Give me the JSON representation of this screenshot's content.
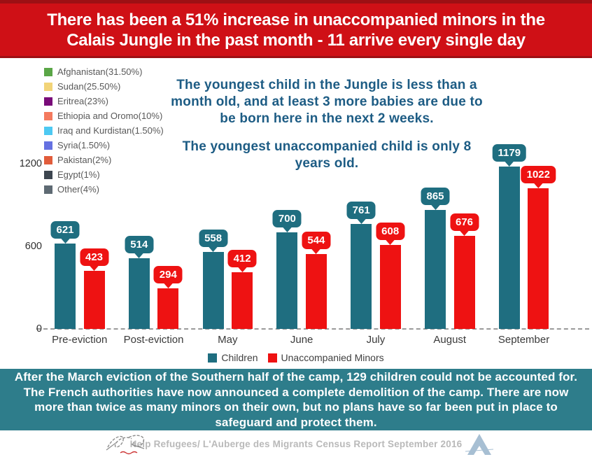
{
  "header": {
    "title_line1": "There has been a 51% increase in unaccompanied minors in the",
    "title_line2": "Calais Jungle in the past month - 11 arrive every single day",
    "background": "#cf1016",
    "stripe_color": "#9d1014",
    "text_color": "#ffffff"
  },
  "nationality_legend": {
    "items": [
      {
        "label": "Afghanistan(31.50%)",
        "color": "#5aa647"
      },
      {
        "label": "Sudan(25.50%)",
        "color": "#f2d478"
      },
      {
        "label": "Eritrea(23%)",
        "color": "#790b79"
      },
      {
        "label": "Ethiopia and Oromo(10%)",
        "color": "#f47a5e"
      },
      {
        "label": "Iraq and Kurdistan(1.50%)",
        "color": "#4dc9f2"
      },
      {
        "label": "Syria(1.50%)",
        "color": "#6571e1"
      },
      {
        "label": "Pakistan(2%)",
        "color": "#e15c3b"
      },
      {
        "label": "Egypt(1%)",
        "color": "#3d4650"
      },
      {
        "label": "Other(4%)",
        "color": "#5e6a73"
      }
    ]
  },
  "callout": {
    "paragraph1": "The youngest child in the Jungle is less than a month old, and at least 3 more babies are due to be born here in the next 2 weeks.",
    "paragraph2": "The youngest unaccompanied child is only 8 years old.",
    "text_color": "#1d5c84"
  },
  "chart_data": {
    "type": "bar",
    "categories": [
      "Pre-eviction",
      "Post-eviction",
      "May",
      "June",
      "July",
      "August",
      "September"
    ],
    "series": [
      {
        "name": "Children",
        "color": "#1f6e80",
        "values": [
          621,
          514,
          558,
          700,
          761,
          865,
          1179
        ]
      },
      {
        "name": "Unaccompanied Minors",
        "color": "#ee1212",
        "values": [
          423,
          294,
          412,
          544,
          608,
          676,
          1022
        ]
      }
    ],
    "yticks": [
      0,
      600,
      1200
    ],
    "ylim": [
      0,
      1220
    ],
    "grid": false,
    "legend_position": "bottom",
    "baseline_style": "dashed",
    "value_labels": "bubble-above-bar"
  },
  "footer": {
    "text": "After the March eviction of the Southern half of the camp, 129 children could not be accounted for. The French authorities have now announced a complete demolition of the camp. There are now more than twice as many minors on their own, but no plans have so far been put in place to safeguard and protect them.",
    "background": "#2e7d8b",
    "text_color": "#ffffff"
  },
  "attribution": {
    "text": "Help Refugees/ L'Auberge des Migrants Census Report September 2016",
    "text_color": "#b9b9b9",
    "logos": [
      "help-refugees-sketch-logo",
      "auberge-des-migrants-triangle-logo"
    ]
  }
}
